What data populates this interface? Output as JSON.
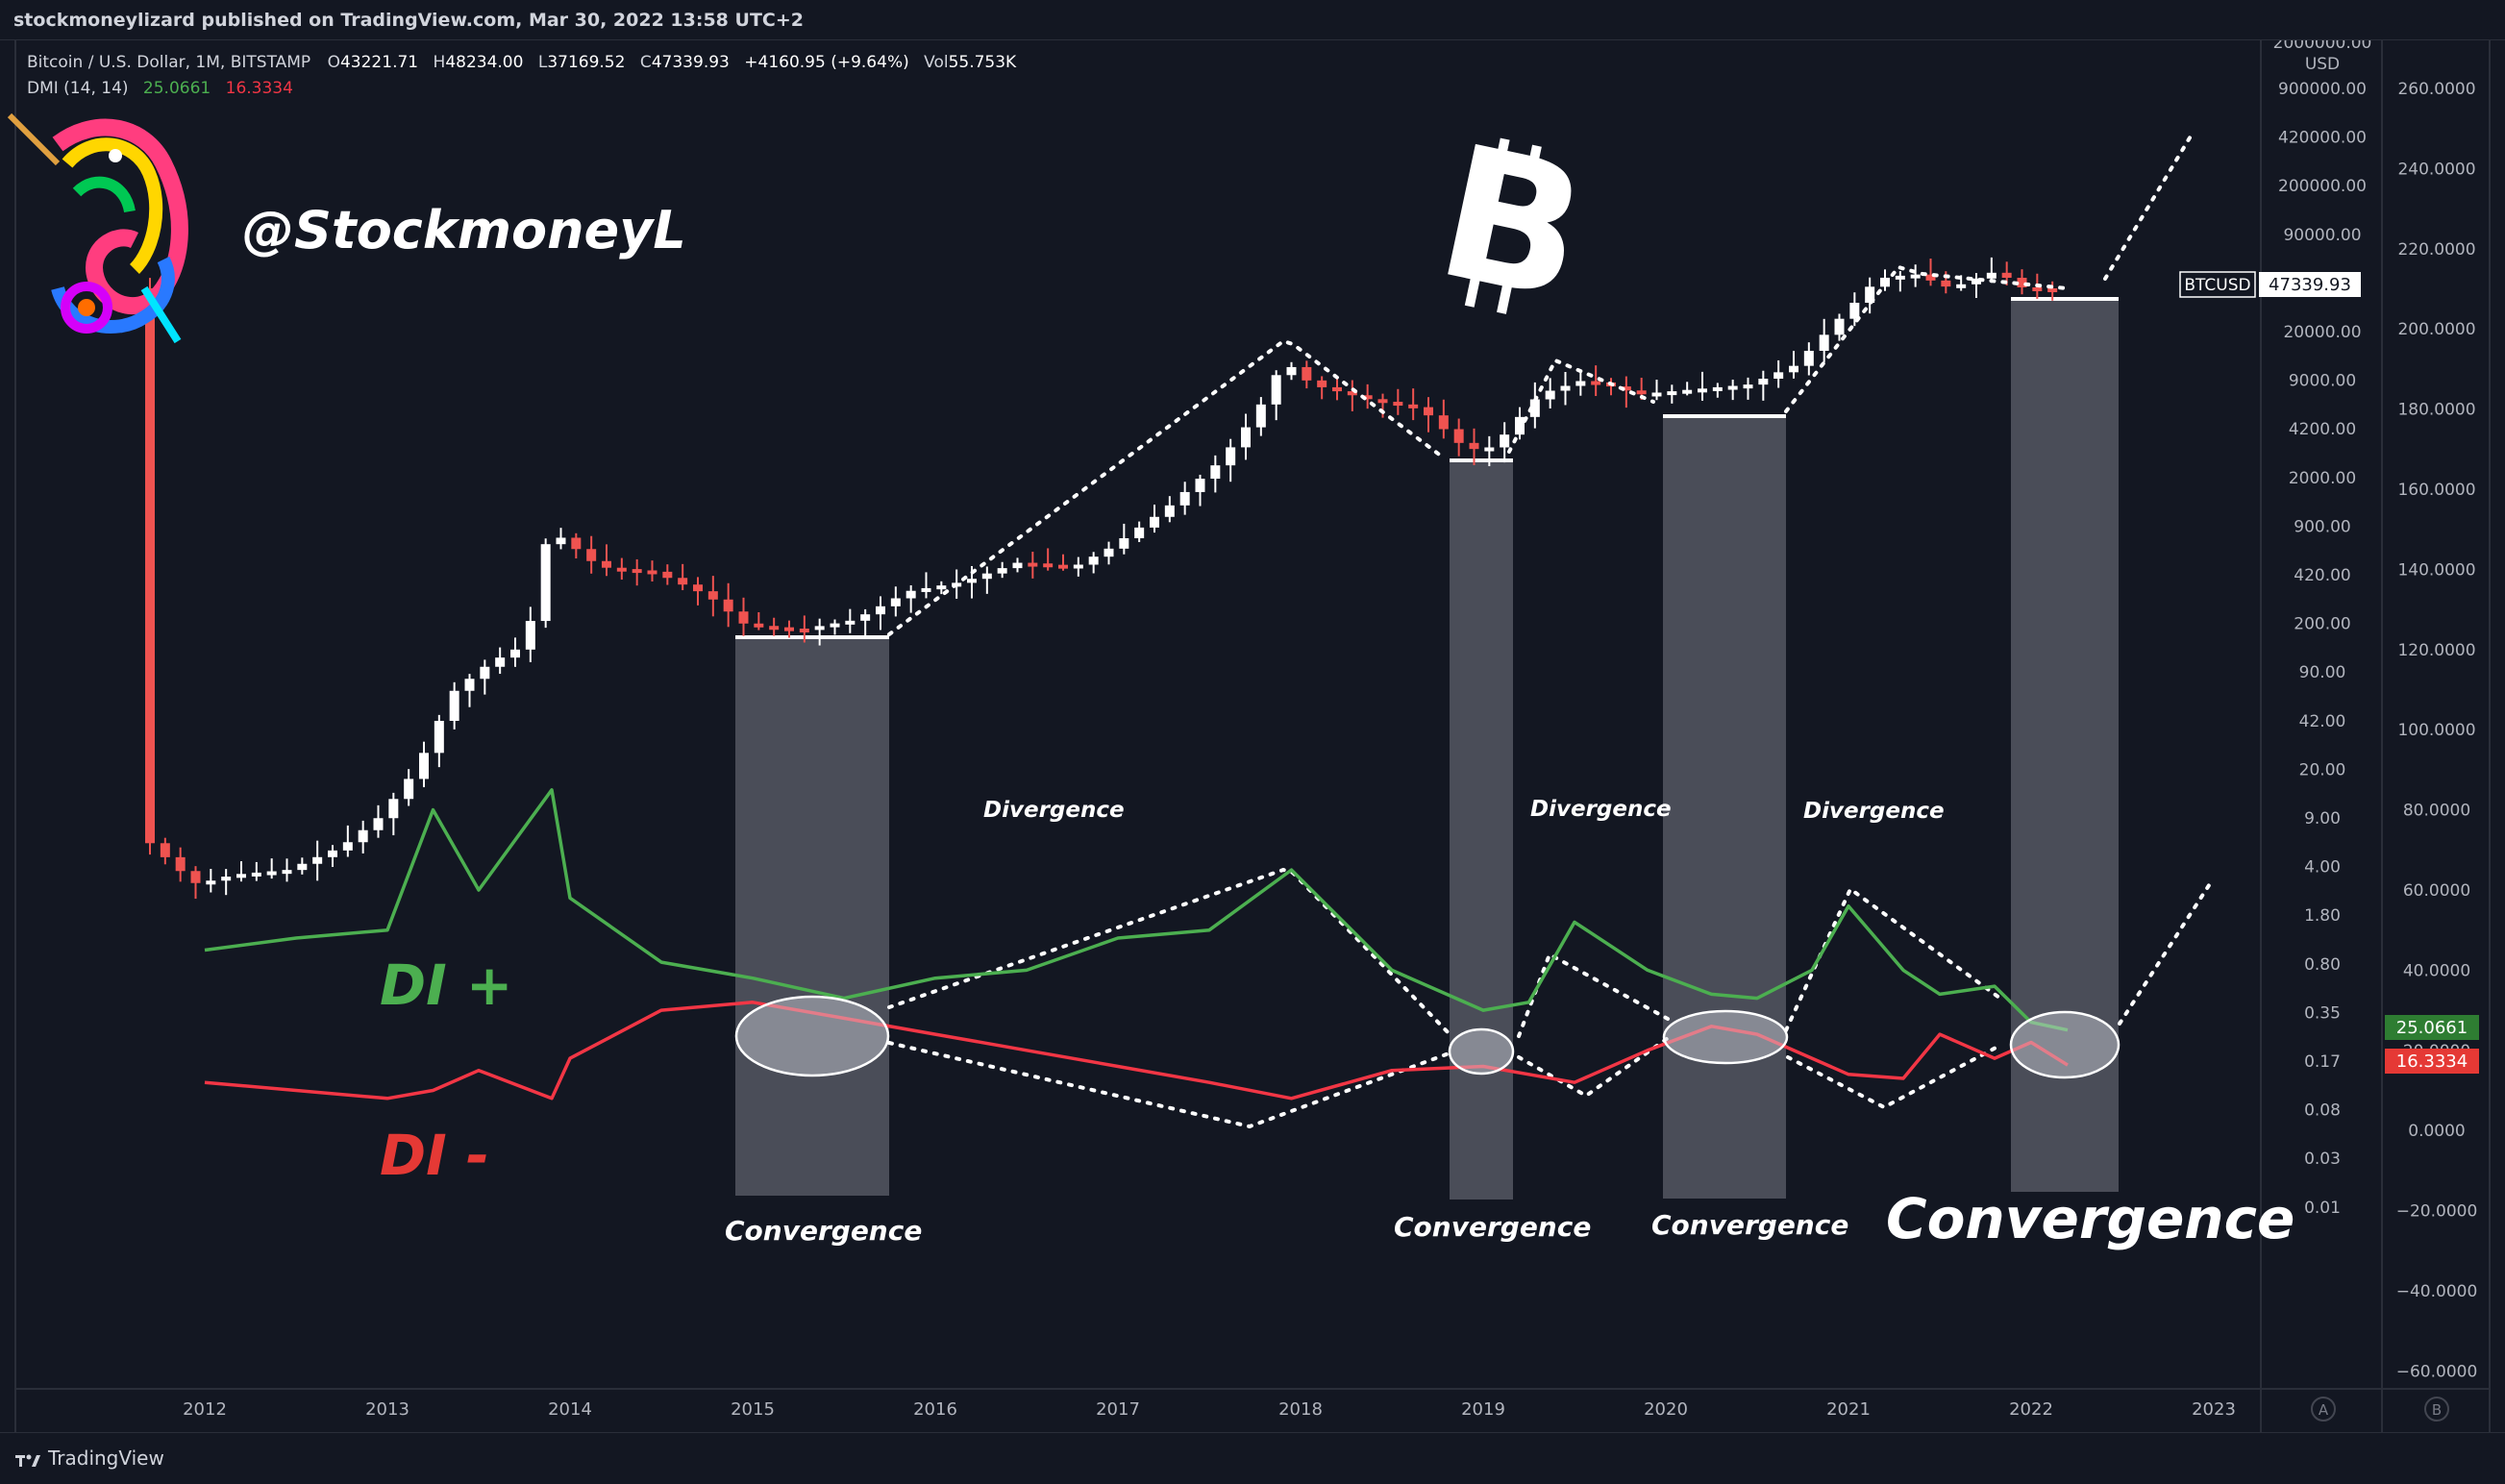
{
  "publisher": "stockmoneylizard published on TradingView.com, Mar 30, 2022 13:58 UTC+2",
  "legend": {
    "symbol": "Bitcoin / U.S. Dollar, 1M, BITSTAMP",
    "open_label": "O",
    "open": "43221.71",
    "high_label": "H",
    "high": "48234.00",
    "low_label": "L",
    "low": "37169.52",
    "close_label": "C",
    "close": "47339.93",
    "change": "+4160.95 (+9.64%)",
    "vol_label": "Vol",
    "vol": "55.753K",
    "dmi_label": "DMI (14, 14)",
    "dmi_plus": "25.0661",
    "dmi_minus": "16.3334"
  },
  "watermark_handle": "@StockmoneyL",
  "annotations": {
    "divergence": "Divergence",
    "convergence": "Convergence",
    "di_plus": "DI +",
    "di_minus": "DI -"
  },
  "price_axis": {
    "unit": "USD",
    "labels": [
      "2000000.00",
      "900000.00",
      "420000.00",
      "200000.00",
      "90000.00",
      "42000.00",
      "20000.00",
      "9000.00",
      "4200.00",
      "2000.00",
      "900.00",
      "420.00",
      "200.00",
      "90.00",
      "42.00",
      "20.00",
      "9.00",
      "4.00",
      "1.80",
      "0.80",
      "0.35",
      "0.17",
      "0.08",
      "0.03",
      "0.01"
    ],
    "btc_tag": "BTCUSD",
    "last_price": "47339.93"
  },
  "dmi_axis": {
    "labels": [
      "260.0000",
      "240.0000",
      "220.0000",
      "200.0000",
      "180.0000",
      "160.0000",
      "140.0000",
      "120.0000",
      "100.0000",
      "80.0000",
      "60.0000",
      "40.0000",
      "20.0000",
      "0.0000",
      "−20.0000",
      "−40.0000",
      "−60.0000"
    ],
    "plus_tag": "25.0661",
    "minus_tag": "16.3334"
  },
  "time_axis": [
    "2012",
    "2013",
    "2014",
    "2015",
    "2016",
    "2017",
    "2018",
    "2019",
    "2020",
    "2021",
    "2022",
    "2023"
  ],
  "axis_buttons": {
    "auto": "A",
    "log": "B"
  },
  "brand": "TradingView",
  "colors": {
    "background": "#131722",
    "up_candle": "#ffffff",
    "down_candle": "#ef5350",
    "di_plus": "#4caf50",
    "di_minus": "#f23645",
    "label_green": "#2e7d32",
    "label_red": "#e53935",
    "highlight": "#5d606b"
  },
  "chart_data": {
    "type": "line",
    "x": [
      2012.0,
      2012.5,
      2013.0,
      2013.25,
      2013.5,
      2013.9,
      2014.0,
      2014.5,
      2015.0,
      2015.5,
      2016.0,
      2016.5,
      2017.0,
      2017.5,
      2017.95,
      2018.5,
      2019.0,
      2019.25,
      2019.5,
      2019.9,
      2020.25,
      2020.5,
      2020.8,
      2021.0,
      2021.3,
      2021.5,
      2021.8,
      2022.0,
      2022.2
    ],
    "series": [
      {
        "name": "DI +",
        "values": [
          45,
          48,
          50,
          80,
          60,
          85,
          58,
          42,
          38,
          33,
          38,
          40,
          48,
          50,
          65,
          40,
          30,
          32,
          52,
          40,
          34,
          33,
          40,
          56,
          40,
          34,
          36,
          27,
          25.07
        ]
      },
      {
        "name": "DI -",
        "values": [
          12,
          10,
          8,
          10,
          15,
          8,
          18,
          30,
          32,
          28,
          24,
          20,
          16,
          12,
          8,
          15,
          16,
          14,
          12,
          20,
          26,
          24,
          18,
          14,
          13,
          24,
          18,
          22,
          16.33
        ]
      }
    ],
    "ylim": [
      -60,
      270
    ]
  }
}
